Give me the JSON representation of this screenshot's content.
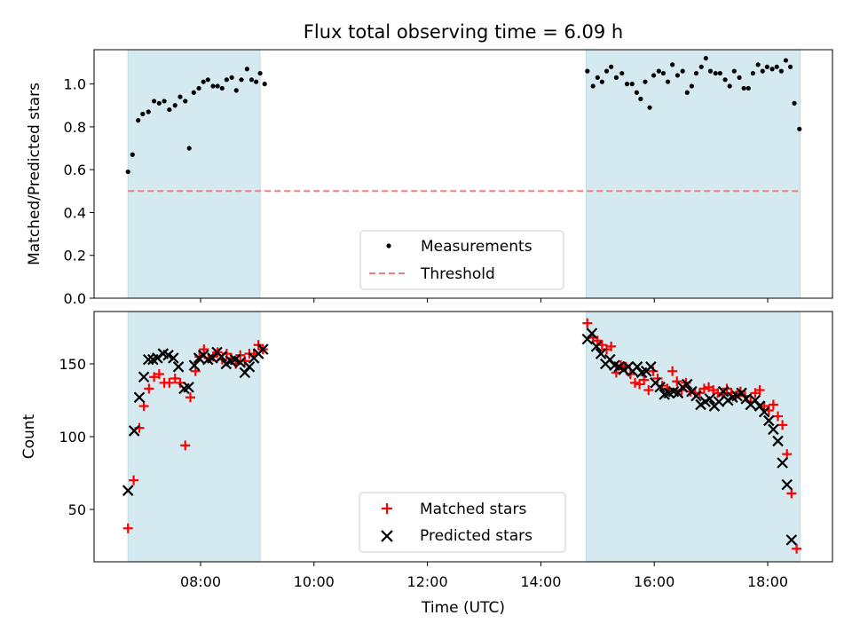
{
  "chart_data": {
    "title": "Flux total observing time = 6.09 h",
    "xlabel": "Time (UTC)",
    "x_ticks": [
      "08:00",
      "10:00",
      "12:00",
      "14:00",
      "16:00",
      "18:00"
    ],
    "shaded_intervals_hours": [
      [
        6.72,
        9.05
      ],
      [
        14.8,
        18.57
      ]
    ],
    "shade_color": "#d4eaf0",
    "panels": [
      {
        "type": "scatter",
        "ylabel": "Matched/Predicted stars",
        "ylim": [
          0,
          1.16
        ],
        "y_ticks": [
          "0.0",
          "0.2",
          "0.4",
          "0.6",
          "0.8",
          "1.0"
        ],
        "threshold": 0.5,
        "threshold_color": "#f08080",
        "legend": [
          "Measurements",
          "Threshold"
        ],
        "series": [
          {
            "name": "Measurements",
            "color": "#000000",
            "points": [
              [
                6.72,
                0.59
              ],
              [
                6.8,
                0.67
              ],
              [
                6.9,
                0.83
              ],
              [
                6.98,
                0.86
              ],
              [
                7.08,
                0.87
              ],
              [
                7.18,
                0.92
              ],
              [
                7.27,
                0.91
              ],
              [
                7.36,
                0.92
              ],
              [
                7.45,
                0.88
              ],
              [
                7.55,
                0.9
              ],
              [
                7.64,
                0.94
              ],
              [
                7.73,
                0.92
              ],
              [
                7.8,
                0.7
              ],
              [
                7.88,
                0.96
              ],
              [
                7.97,
                0.98
              ],
              [
                8.05,
                1.01
              ],
              [
                8.13,
                1.02
              ],
              [
                8.22,
                0.99
              ],
              [
                8.3,
                0.99
              ],
              [
                8.38,
                0.98
              ],
              [
                8.46,
                1.02
              ],
              [
                8.55,
                1.03
              ],
              [
                8.63,
                0.97
              ],
              [
                8.72,
                1.02
              ],
              [
                8.82,
                1.07
              ],
              [
                8.9,
                1.02
              ],
              [
                8.98,
                1.01
              ],
              [
                9.05,
                1.05
              ],
              [
                9.13,
                1.0
              ],
              [
                14.82,
                1.06
              ],
              [
                14.92,
                0.99
              ],
              [
                15.0,
                1.03
              ],
              [
                15.08,
                1.01
              ],
              [
                15.16,
                1.06
              ],
              [
                15.24,
                1.08
              ],
              [
                15.33,
                1.03
              ],
              [
                15.43,
                1.05
              ],
              [
                15.52,
                1.0
              ],
              [
                15.61,
                1.0
              ],
              [
                15.69,
                0.96
              ],
              [
                15.76,
                0.93
              ],
              [
                15.84,
                1.01
              ],
              [
                15.92,
                0.89
              ],
              [
                15.99,
                1.04
              ],
              [
                16.08,
                1.06
              ],
              [
                16.16,
                1.05
              ],
              [
                16.24,
                1.01
              ],
              [
                16.32,
                1.09
              ],
              [
                16.41,
                1.04
              ],
              [
                16.5,
                1.06
              ],
              [
                16.58,
                0.96
              ],
              [
                16.66,
                0.99
              ],
              [
                16.74,
                1.05
              ],
              [
                16.83,
                1.08
              ],
              [
                16.91,
                1.12
              ],
              [
                16.99,
                1.06
              ],
              [
                17.08,
                1.05
              ],
              [
                17.16,
                1.05
              ],
              [
                17.25,
                1.02
              ],
              [
                17.33,
                0.99
              ],
              [
                17.41,
                1.06
              ],
              [
                17.5,
                1.03
              ],
              [
                17.58,
                0.98
              ],
              [
                17.66,
                0.98
              ],
              [
                17.74,
                1.05
              ],
              [
                17.83,
                1.09
              ],
              [
                17.91,
                1.06
              ],
              [
                17.99,
                1.08
              ],
              [
                18.08,
                1.07
              ],
              [
                18.16,
                1.08
              ],
              [
                18.24,
                1.06
              ],
              [
                18.32,
                1.11
              ],
              [
                18.4,
                1.08
              ],
              [
                18.47,
                0.91
              ],
              [
                18.56,
                0.79
              ]
            ]
          }
        ]
      },
      {
        "type": "scatter",
        "ylabel": "Count",
        "ylim": [
          14,
          186
        ],
        "y_ticks": [
          "50",
          "100",
          "150"
        ],
        "legend": [
          "Matched stars",
          "Predicted stars"
        ],
        "series": [
          {
            "name": "Matched stars",
            "marker": "+",
            "color": "#ff0000",
            "points": [
              [
                6.72,
                37
              ],
              [
                6.82,
                70
              ],
              [
                6.92,
                106
              ],
              [
                7.0,
                121
              ],
              [
                7.09,
                133
              ],
              [
                7.18,
                141
              ],
              [
                7.27,
                143
              ],
              [
                7.36,
                137
              ],
              [
                7.45,
                137
              ],
              [
                7.55,
                140
              ],
              [
                7.64,
                137
              ],
              [
                7.73,
                94
              ],
              [
                7.82,
                127
              ],
              [
                7.91,
                145
              ],
              [
                7.98,
                155
              ],
              [
                8.06,
                160
              ],
              [
                8.14,
                154
              ],
              [
                8.22,
                155
              ],
              [
                8.3,
                158
              ],
              [
                8.38,
                153
              ],
              [
                8.46,
                157
              ],
              [
                8.54,
                154
              ],
              [
                8.62,
                150
              ],
              [
                8.7,
                156
              ],
              [
                8.78,
                152
              ],
              [
                8.86,
                157
              ],
              [
                8.94,
                157
              ],
              [
                9.02,
                163
              ],
              [
                9.1,
                160
              ],
              [
                14.82,
                178
              ],
              [
                14.92,
                168
              ],
              [
                15.0,
                166
              ],
              [
                15.08,
                163
              ],
              [
                15.16,
                160
              ],
              [
                15.24,
                162
              ],
              [
                15.33,
                144
              ],
              [
                15.41,
                149
              ],
              [
                15.5,
                148
              ],
              [
                15.58,
                143
              ],
              [
                15.66,
                137
              ],
              [
                15.74,
                136
              ],
              [
                15.82,
                139
              ],
              [
                15.9,
                132
              ],
              [
                15.98,
                145
              ],
              [
                16.06,
                140
              ],
              [
                16.14,
                135
              ],
              [
                16.23,
                133
              ],
              [
                16.32,
                145
              ],
              [
                16.4,
                138
              ],
              [
                16.48,
                132
              ],
              [
                16.56,
                137
              ],
              [
                16.64,
                131
              ],
              [
                16.72,
                130
              ],
              [
                16.8,
                130
              ],
              [
                16.88,
                133
              ],
              [
                16.96,
                134
              ],
              [
                17.04,
                132
              ],
              [
                17.12,
                130
              ],
              [
                17.2,
                129
              ],
              [
                17.28,
                133
              ],
              [
                17.36,
                130
              ],
              [
                17.44,
                128
              ],
              [
                17.52,
                131
              ],
              [
                17.6,
                128
              ],
              [
                17.7,
                124
              ],
              [
                17.78,
                130
              ],
              [
                17.86,
                132
              ],
              [
                17.94,
                121
              ],
              [
                18.02,
                118
              ],
              [
                18.1,
                122
              ],
              [
                18.18,
                114
              ],
              [
                18.26,
                108
              ],
              [
                18.34,
                88
              ],
              [
                18.42,
                61
              ],
              [
                18.51,
                23
              ]
            ]
          },
          {
            "name": "Predicted stars",
            "marker": "x",
            "color": "#000000",
            "points": [
              [
                6.72,
                63
              ],
              [
                6.83,
                104
              ],
              [
                6.92,
                127
              ],
              [
                7.0,
                141
              ],
              [
                7.08,
                153
              ],
              [
                7.16,
                153
              ],
              [
                7.24,
                154
              ],
              [
                7.34,
                157
              ],
              [
                7.43,
                156
              ],
              [
                7.52,
                154
              ],
              [
                7.61,
                148
              ],
              [
                7.71,
                133
              ],
              [
                7.79,
                134
              ],
              [
                7.89,
                149
              ],
              [
                7.97,
                154
              ],
              [
                8.05,
                156
              ],
              [
                8.13,
                153
              ],
              [
                8.21,
                154
              ],
              [
                8.29,
                158
              ],
              [
                8.37,
                155
              ],
              [
                8.45,
                150
              ],
              [
                8.53,
                152
              ],
              [
                8.61,
                153
              ],
              [
                8.7,
                151
              ],
              [
                8.78,
                144
              ],
              [
                8.86,
                148
              ],
              [
                8.94,
                154
              ],
              [
                9.02,
                157
              ],
              [
                9.1,
                160
              ],
              [
                14.82,
                167
              ],
              [
                14.9,
                171
              ],
              [
                14.98,
                162
              ],
              [
                15.06,
                157
              ],
              [
                15.14,
                150
              ],
              [
                15.22,
                153
              ],
              [
                15.3,
                149
              ],
              [
                15.38,
                148
              ],
              [
                15.46,
                146
              ],
              [
                15.54,
                148
              ],
              [
                15.62,
                145
              ],
              [
                15.7,
                148
              ],
              [
                15.78,
                144
              ],
              [
                15.86,
                145
              ],
              [
                15.94,
                148
              ],
              [
                16.02,
                137
              ],
              [
                16.1,
                134
              ],
              [
                16.18,
                129
              ],
              [
                16.26,
                130
              ],
              [
                16.34,
                131
              ],
              [
                16.42,
                130
              ],
              [
                16.5,
                134
              ],
              [
                16.58,
                136
              ],
              [
                16.66,
                131
              ],
              [
                16.74,
                128
              ],
              [
                16.82,
                122
              ],
              [
                16.9,
                124
              ],
              [
                16.98,
                126
              ],
              [
                17.06,
                121
              ],
              [
                17.14,
                124
              ],
              [
                17.22,
                131
              ],
              [
                17.3,
                125
              ],
              [
                17.38,
                127
              ],
              [
                17.46,
                128
              ],
              [
                17.54,
                130
              ],
              [
                17.62,
                126
              ],
              [
                17.7,
                122
              ],
              [
                17.78,
                125
              ],
              [
                17.86,
                121
              ],
              [
                17.94,
                117
              ],
              [
                18.02,
                111
              ],
              [
                18.1,
                105
              ],
              [
                18.18,
                97
              ],
              [
                18.26,
                82
              ],
              [
                18.34,
                67
              ],
              [
                18.42,
                29
              ]
            ]
          }
        ]
      }
    ]
  }
}
